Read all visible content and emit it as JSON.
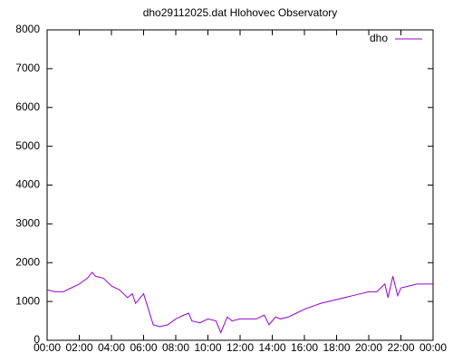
{
  "chart_data": {
    "type": "line",
    "title": "dho29112025.dat Hlohovec Observatory",
    "x": [
      0,
      0.5,
      1,
      1.5,
      2,
      2.5,
      2.8,
      3,
      3.5,
      4,
      4.5,
      5,
      5.3,
      5.5,
      6,
      6.3,
      6.6,
      7,
      7.5,
      8,
      8.5,
      8.8,
      9,
      9.5,
      10,
      10.5,
      10.8,
      11.2,
      11.5,
      12,
      12.5,
      13,
      13.5,
      13.8,
      14.2,
      14.5,
      15,
      15.5,
      16,
      17,
      18,
      19,
      20,
      20.5,
      21,
      21.2,
      21.5,
      21.8,
      22,
      22.5,
      23,
      23.5,
      24
    ],
    "series": [
      {
        "name": "dho",
        "color": "#9400d3",
        "values": [
          1300,
          1250,
          1250,
          1350,
          1450,
          1600,
          1750,
          1650,
          1600,
          1400,
          1300,
          1100,
          1200,
          950,
          1200,
          800,
          400,
          350,
          400,
          550,
          650,
          700,
          500,
          450,
          550,
          500,
          200,
          600,
          500,
          550,
          550,
          550,
          650,
          400,
          600,
          550,
          600,
          700,
          800,
          950,
          1050,
          1150,
          1250,
          1250,
          1450,
          1100,
          1650,
          1150,
          1350,
          1400,
          1450,
          1450,
          1450
        ]
      }
    ],
    "xlim": [
      0,
      24
    ],
    "xticks": [
      {
        "value": 0,
        "label": "00:00"
      },
      {
        "value": 2,
        "label": "02:00"
      },
      {
        "value": 4,
        "label": "04:00"
      },
      {
        "value": 6,
        "label": "06:00"
      },
      {
        "value": 8,
        "label": "08:00"
      },
      {
        "value": 10,
        "label": "10:00"
      },
      {
        "value": 12,
        "label": "12:00"
      },
      {
        "value": 14,
        "label": "14:00"
      },
      {
        "value": 16,
        "label": "16:00"
      },
      {
        "value": 18,
        "label": "18:00"
      },
      {
        "value": 20,
        "label": "20:00"
      },
      {
        "value": 22,
        "label": "22:00"
      },
      {
        "value": 24,
        "label": "00:00"
      }
    ],
    "ylim": [
      0,
      8000
    ],
    "yticks": [
      0,
      1000,
      2000,
      3000,
      4000,
      5000,
      6000,
      7000,
      8000
    ],
    "grid": false,
    "legend": "top-right"
  }
}
